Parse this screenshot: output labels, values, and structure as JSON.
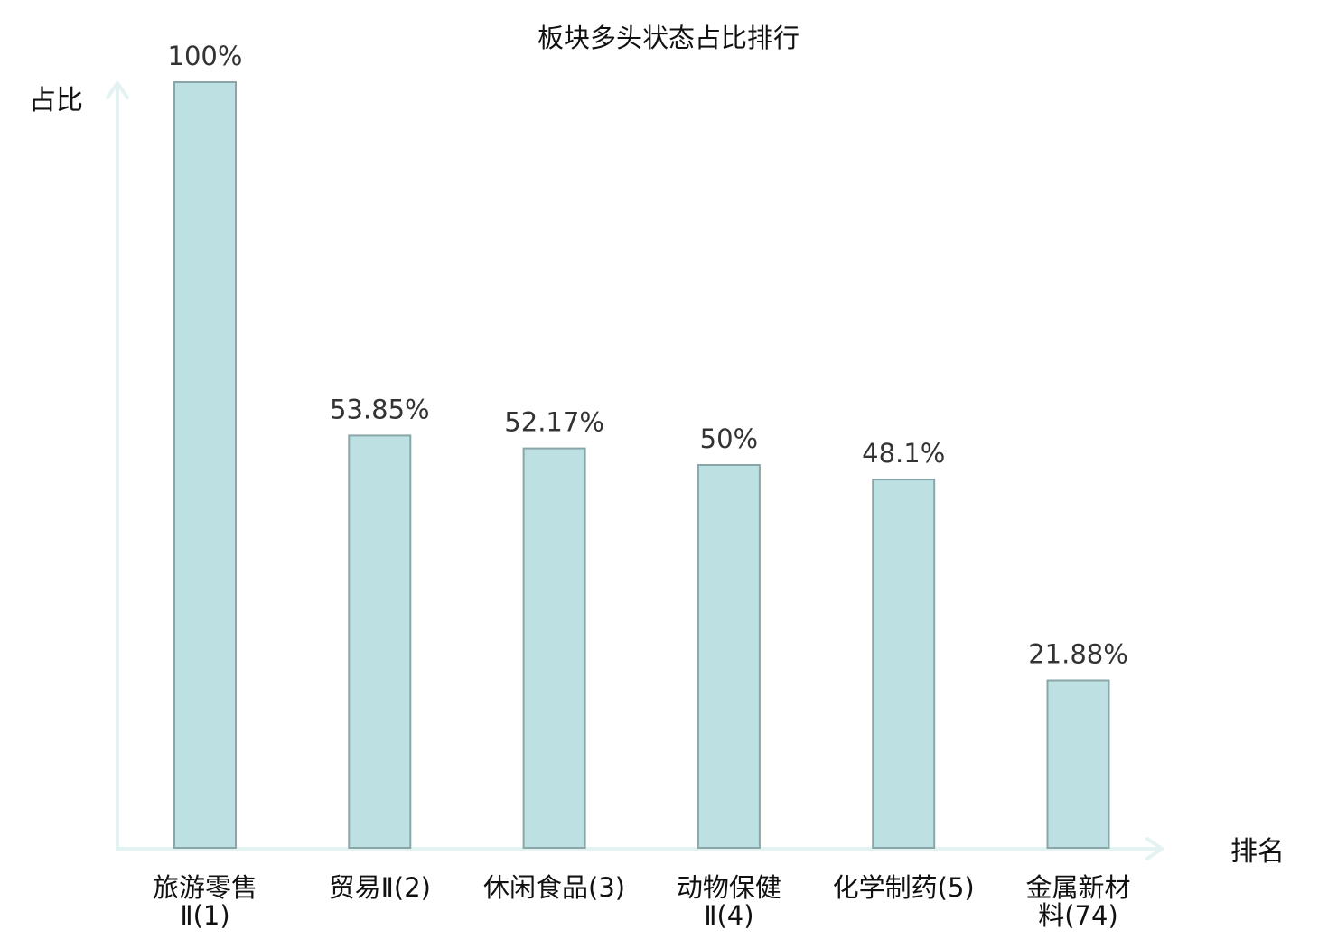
{
  "chart_data": {
    "type": "bar",
    "title": "板块多头状态占比排行",
    "ylabel": "占比",
    "xlabel": "排名",
    "ylim": [
      0,
      100
    ],
    "grid": false,
    "categories": [
      [
        "旅游零售",
        "Ⅱ(1)"
      ],
      [
        "贸易Ⅱ(2)"
      ],
      [
        "休闲食品(3)"
      ],
      [
        "动物保健",
        "Ⅱ(4)"
      ],
      [
        "化学制药(5)"
      ],
      [
        "金属新材",
        "料(74)"
      ]
    ],
    "values": [
      100,
      53.85,
      52.17,
      50,
      48.1,
      21.88
    ],
    "value_labels": [
      "100%",
      "53.85%",
      "52.17%",
      "50%",
      "48.1%",
      "21.88%"
    ],
    "highlight_index": 5,
    "colors": {
      "bar_fill": "#bde0e2",
      "bar_stroke": "#8aa6a8",
      "axis": "#e2f3f1",
      "highlight_text": "#e02020",
      "text": "#111111",
      "value_text": "#333333"
    }
  }
}
